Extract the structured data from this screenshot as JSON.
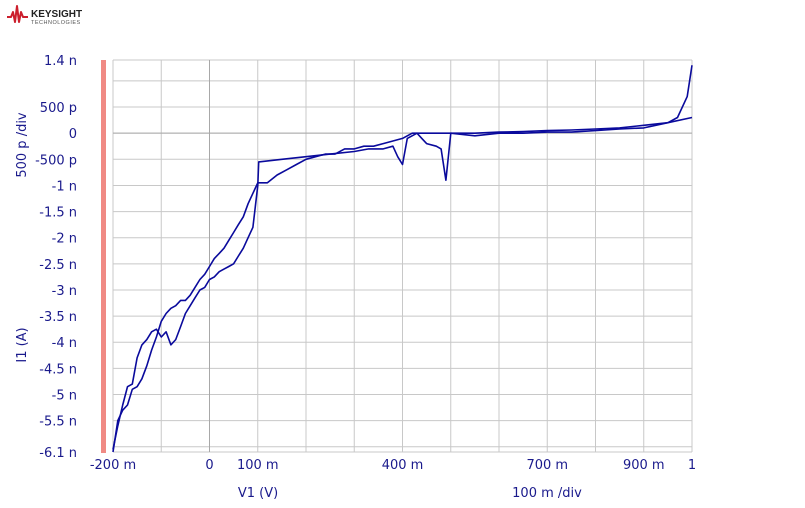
{
  "brand": {
    "name": "KEYSIGHT",
    "sub": "TECHNOLOGIES",
    "color": "#cc1f2d"
  },
  "colors": {
    "trace": "#0a0a9c",
    "grid": "#c8c8c8",
    "axis_text": "#1a1a8c",
    "marker_bar": "#f08a84"
  },
  "chart_data": {
    "type": "line",
    "x_axis": {
      "label": "V1 (V)",
      "scale_label": "100 m /div",
      "range": [
        -0.2,
        1.0
      ],
      "ticks": [
        {
          "value": -0.2,
          "label": "-200 m"
        },
        {
          "value": 0.0,
          "label": "0"
        },
        {
          "value": 0.1,
          "label": "100 m"
        },
        {
          "value": 0.4,
          "label": "400 m"
        },
        {
          "value": 0.7,
          "label": "700 m"
        },
        {
          "value": 0.9,
          "label": "900 m"
        },
        {
          "value": 1.0,
          "label": "1"
        }
      ]
    },
    "y_axis": {
      "label": "I1 (A)",
      "scale_label": "500 p /div",
      "range": [
        -6.1,
        1.4
      ],
      "unit_note": "values in nA",
      "ticks": [
        {
          "value": 1.4,
          "label": "1.4 n"
        },
        {
          "value": 0.5,
          "label": "500 p"
        },
        {
          "value": 0.0,
          "label": "0"
        },
        {
          "value": -0.5,
          "label": "-500 p"
        },
        {
          "value": -1.0,
          "label": "-1 n"
        },
        {
          "value": -1.5,
          "label": "-1.5 n"
        },
        {
          "value": -2.0,
          "label": "-2 n"
        },
        {
          "value": -2.5,
          "label": "-2.5 n"
        },
        {
          "value": -3.0,
          "label": "-3 n"
        },
        {
          "value": -3.5,
          "label": "-3.5 n"
        },
        {
          "value": -4.0,
          "label": "-4 n"
        },
        {
          "value": -4.5,
          "label": "-4.5 n"
        },
        {
          "value": -5.0,
          "label": "-5 n"
        },
        {
          "value": -5.5,
          "label": "-5.5 n"
        },
        {
          "value": -6.1,
          "label": "-6.1 n"
        }
      ]
    },
    "grid": true,
    "series": [
      {
        "points": [
          [
            -0.2,
            -6.1
          ],
          [
            -0.19,
            -5.5
          ],
          [
            -0.18,
            -5.3
          ],
          [
            -0.17,
            -5.2
          ],
          [
            -0.16,
            -4.9
          ],
          [
            -0.15,
            -4.85
          ],
          [
            -0.14,
            -4.7
          ],
          [
            -0.13,
            -4.45
          ],
          [
            -0.12,
            -4.15
          ],
          [
            -0.11,
            -3.9
          ],
          [
            -0.1,
            -3.6
          ],
          [
            -0.09,
            -3.45
          ],
          [
            -0.08,
            -3.35
          ],
          [
            -0.07,
            -3.3
          ],
          [
            -0.06,
            -3.2
          ],
          [
            -0.05,
            -3.2
          ],
          [
            -0.04,
            -3.1
          ],
          [
            -0.03,
            -2.95
          ],
          [
            -0.02,
            -2.8
          ],
          [
            -0.01,
            -2.7
          ],
          [
            0.0,
            -2.55
          ],
          [
            0.01,
            -2.4
          ],
          [
            0.02,
            -2.3
          ],
          [
            0.03,
            -2.2
          ],
          [
            0.04,
            -2.05
          ],
          [
            0.05,
            -1.9
          ],
          [
            0.06,
            -1.75
          ],
          [
            0.07,
            -1.6
          ],
          [
            0.08,
            -1.35
          ],
          [
            0.09,
            -1.15
          ],
          [
            0.1,
            -0.95
          ],
          [
            0.12,
            -0.95
          ],
          [
            0.14,
            -0.8
          ],
          [
            0.16,
            -0.7
          ],
          [
            0.18,
            -0.6
          ],
          [
            0.2,
            -0.5
          ],
          [
            0.22,
            -0.45
          ],
          [
            0.24,
            -0.4
          ],
          [
            0.26,
            -0.4
          ],
          [
            0.28,
            -0.3
          ],
          [
            0.3,
            -0.3
          ],
          [
            0.32,
            -0.25
          ],
          [
            0.34,
            -0.25
          ],
          [
            0.36,
            -0.2
          ],
          [
            0.38,
            -0.15
          ],
          [
            0.4,
            -0.1
          ],
          [
            0.42,
            0.0
          ],
          [
            0.43,
            0.0
          ],
          [
            0.44,
            -0.1
          ],
          [
            0.45,
            -0.2
          ],
          [
            0.47,
            -0.25
          ],
          [
            0.48,
            -0.3
          ],
          [
            0.49,
            -0.9
          ],
          [
            0.5,
            0.0
          ],
          [
            0.55,
            -0.05
          ],
          [
            0.6,
            0.0
          ],
          [
            0.65,
            0.0
          ],
          [
            0.7,
            0.02
          ],
          [
            0.75,
            0.02
          ],
          [
            0.8,
            0.05
          ],
          [
            0.85,
            0.08
          ],
          [
            0.9,
            0.1
          ],
          [
            0.95,
            0.2
          ],
          [
            0.97,
            0.3
          ],
          [
            0.99,
            0.7
          ],
          [
            1.0,
            1.3
          ]
        ]
      },
      {
        "points": [
          [
            -0.2,
            -6.05
          ],
          [
            -0.19,
            -5.6
          ],
          [
            -0.18,
            -5.2
          ],
          [
            -0.17,
            -4.85
          ],
          [
            -0.16,
            -4.8
          ],
          [
            -0.15,
            -4.3
          ],
          [
            -0.14,
            -4.05
          ],
          [
            -0.13,
            -3.95
          ],
          [
            -0.12,
            -3.8
          ],
          [
            -0.11,
            -3.75
          ],
          [
            -0.1,
            -3.9
          ],
          [
            -0.09,
            -3.8
          ],
          [
            -0.08,
            -4.05
          ],
          [
            -0.07,
            -3.95
          ],
          [
            -0.06,
            -3.7
          ],
          [
            -0.05,
            -3.45
          ],
          [
            -0.04,
            -3.3
          ],
          [
            -0.03,
            -3.15
          ],
          [
            -0.02,
            -3.0
          ],
          [
            -0.01,
            -2.95
          ],
          [
            0.0,
            -2.8
          ],
          [
            0.01,
            -2.75
          ],
          [
            0.02,
            -2.65
          ],
          [
            0.03,
            -2.6
          ],
          [
            0.04,
            -2.55
          ],
          [
            0.05,
            -2.5
          ],
          [
            0.06,
            -2.35
          ],
          [
            0.07,
            -2.2
          ],
          [
            0.08,
            -2.0
          ],
          [
            0.09,
            -1.8
          ],
          [
            0.1,
            -1.0
          ],
          [
            0.102,
            -0.55
          ],
          [
            0.15,
            -0.5
          ],
          [
            0.2,
            -0.45
          ],
          [
            0.25,
            -0.4
          ],
          [
            0.3,
            -0.35
          ],
          [
            0.33,
            -0.3
          ],
          [
            0.36,
            -0.3
          ],
          [
            0.38,
            -0.25
          ],
          [
            0.39,
            -0.45
          ],
          [
            0.4,
            -0.6
          ],
          [
            0.41,
            -0.1
          ],
          [
            0.43,
            0.0
          ],
          [
            0.45,
            0.0
          ],
          [
            0.47,
            0.0
          ],
          [
            0.5,
            0.0
          ],
          [
            0.55,
            0.0
          ],
          [
            0.6,
            0.02
          ],
          [
            0.65,
            0.03
          ],
          [
            0.7,
            0.05
          ],
          [
            0.75,
            0.06
          ],
          [
            0.8,
            0.08
          ],
          [
            0.85,
            0.1
          ],
          [
            0.9,
            0.15
          ],
          [
            0.95,
            0.2
          ],
          [
            1.0,
            0.3
          ]
        ]
      }
    ]
  }
}
